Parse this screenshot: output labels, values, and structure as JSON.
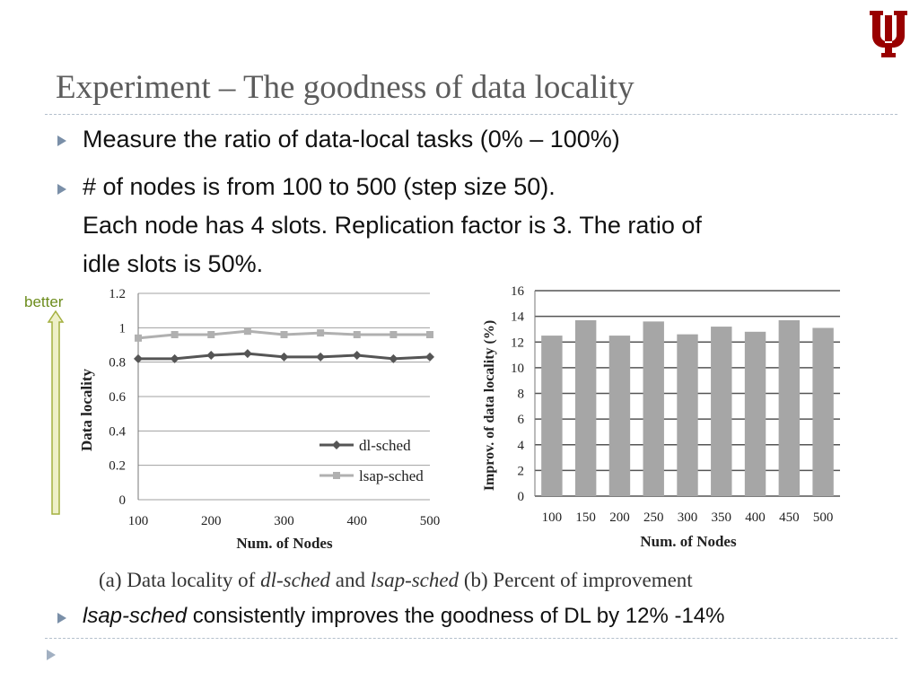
{
  "slide": {
    "title": "Experiment – The goodness of data locality",
    "bullets": [
      "Measure the ratio of data-local tasks (0% – 100%)",
      "# of nodes is from 100 to 500 (step size 50).",
      "Each node has 4 slots. Replication factor is 3. The ratio of",
      "idle slots is 50%."
    ],
    "better_label": "better",
    "caption": {
      "a_prefix": "(a) Data locality of ",
      "a_dl": "dl-sched",
      "a_and": " and ",
      "a_lsap": "lsap-sched",
      "b": " (b) Percent of improvement"
    },
    "conclusion": {
      "italic": "lsap-sched",
      "rest": " consistently improves the goodness of DL by 12% -14%"
    },
    "colors": {
      "title": "#5c5c5c",
      "logo": "#990000",
      "bullet": "#7a8fa8",
      "better": "#6c8c1c"
    },
    "icons": [
      "indiana-university-logo",
      "triangle-bullet-icon",
      "up-arrow-icon"
    ]
  },
  "chart_data": [
    {
      "type": "line",
      "xlabel": "Num. of Nodes",
      "ylabel": "Data locality",
      "x": [
        100,
        150,
        200,
        250,
        300,
        350,
        400,
        450,
        500
      ],
      "x_ticks": [
        "100",
        "200",
        "300",
        "400",
        "500"
      ],
      "y_ticks": [
        "0",
        "0.2",
        "0.4",
        "0.6",
        "0.8",
        "1",
        "1.2"
      ],
      "xlim": [
        100,
        500
      ],
      "ylim": [
        0,
        1.2
      ],
      "grid": true,
      "legend_position": "bottom-right",
      "series": [
        {
          "name": "dl-sched",
          "values": [
            0.82,
            0.82,
            0.84,
            0.85,
            0.83,
            0.83,
            0.84,
            0.82,
            0.83
          ],
          "color": "#555555",
          "marker": "diamond"
        },
        {
          "name": "lsap-sched",
          "values": [
            0.94,
            0.96,
            0.96,
            0.98,
            0.96,
            0.97,
            0.96,
            0.96,
            0.96
          ],
          "color": "#b0b0b0",
          "marker": "square"
        }
      ]
    },
    {
      "type": "bar",
      "xlabel": "Num. of Nodes",
      "ylabel": "Improv. of data locality (%)",
      "categories": [
        "100",
        "150",
        "200",
        "250",
        "300",
        "350",
        "400",
        "450",
        "500"
      ],
      "values": [
        12.5,
        13.7,
        12.5,
        13.6,
        12.6,
        13.2,
        12.8,
        13.7,
        13.1
      ],
      "y_ticks": [
        "0",
        "2",
        "4",
        "6",
        "8",
        "10",
        "12",
        "14",
        "16"
      ],
      "ylim": [
        0,
        16
      ],
      "grid": true,
      "color": "#a6a6a6"
    }
  ]
}
